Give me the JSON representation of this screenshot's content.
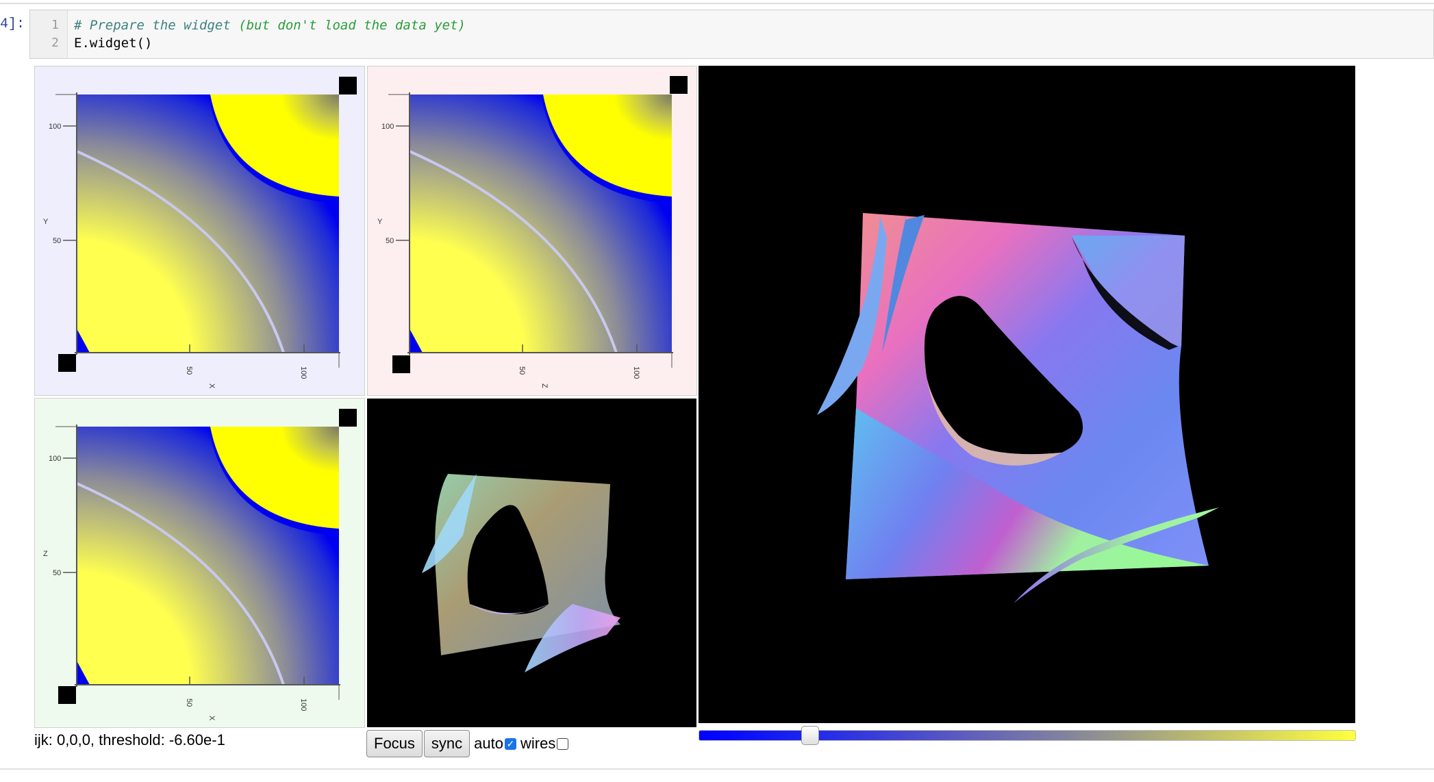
{
  "cell": {
    "prompt": "4]:",
    "line_numbers": [
      "1",
      "2"
    ],
    "comment_hash": "# Prepare the widget ",
    "comment_paren": "(but don't load the data yet)",
    "code": "E.widget()"
  },
  "slices": [
    {
      "y_label": "Y",
      "x_label": "X",
      "y_ticks": [
        "100",
        "50"
      ],
      "x_ticks": [
        "50",
        "100"
      ],
      "background": "#eeeefc"
    },
    {
      "y_label": "Y",
      "x_label": "Z",
      "y_ticks": [
        "100",
        "50"
      ],
      "x_ticks": [
        "50",
        "100"
      ],
      "background": "#fdefef"
    },
    {
      "y_label": "Z",
      "x_label": "X",
      "y_ticks": [
        "100",
        "50"
      ],
      "x_ticks": [
        "50",
        "100"
      ],
      "background": "#eefaee"
    }
  ],
  "status": {
    "text": "ijk: 0,0,0, threshold: -6.60e-1"
  },
  "controls": {
    "focus_label": "Focus",
    "sync_label": "sync",
    "auto_label": "auto",
    "auto_checked": true,
    "wires_label": "wires",
    "wires_checked": false
  },
  "threshold_slider": {
    "value_fraction": 0.17,
    "colors": [
      "#0000ff",
      "#ffff40"
    ]
  }
}
